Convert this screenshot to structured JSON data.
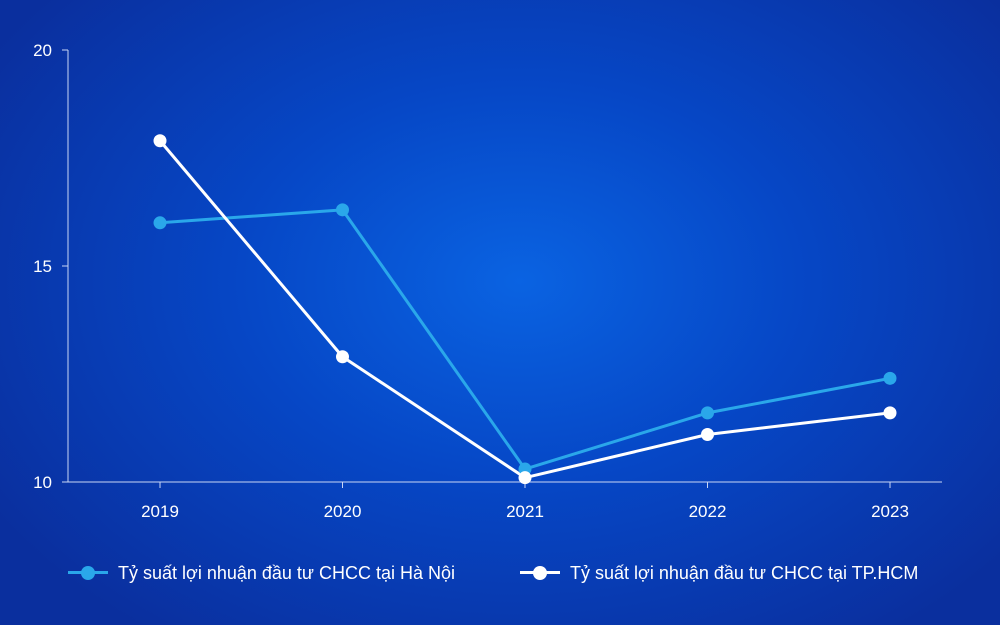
{
  "chart_data": {
    "type": "line",
    "title": "",
    "xlabel": "",
    "ylabel": "",
    "categories": [
      "2019",
      "2020",
      "2021",
      "2022",
      "2023"
    ],
    "yticks": [
      "10",
      "15",
      "20"
    ],
    "ylim": [
      10,
      20
    ],
    "grid": false,
    "legend_position": "bottom",
    "series": [
      {
        "name": "Tỷ suất lợi nhuận đầu tư CHCC tại Hà Nội",
        "values": [
          16.0,
          16.3,
          10.3,
          11.6,
          12.4
        ],
        "color": "#2aa7ea"
      },
      {
        "name": "Tỷ suất lợi nhuận đầu tư CHCC tại TP.HCM",
        "values": [
          17.9,
          12.9,
          10.1,
          11.1,
          11.6
        ],
        "color": "#ffffff"
      }
    ]
  }
}
